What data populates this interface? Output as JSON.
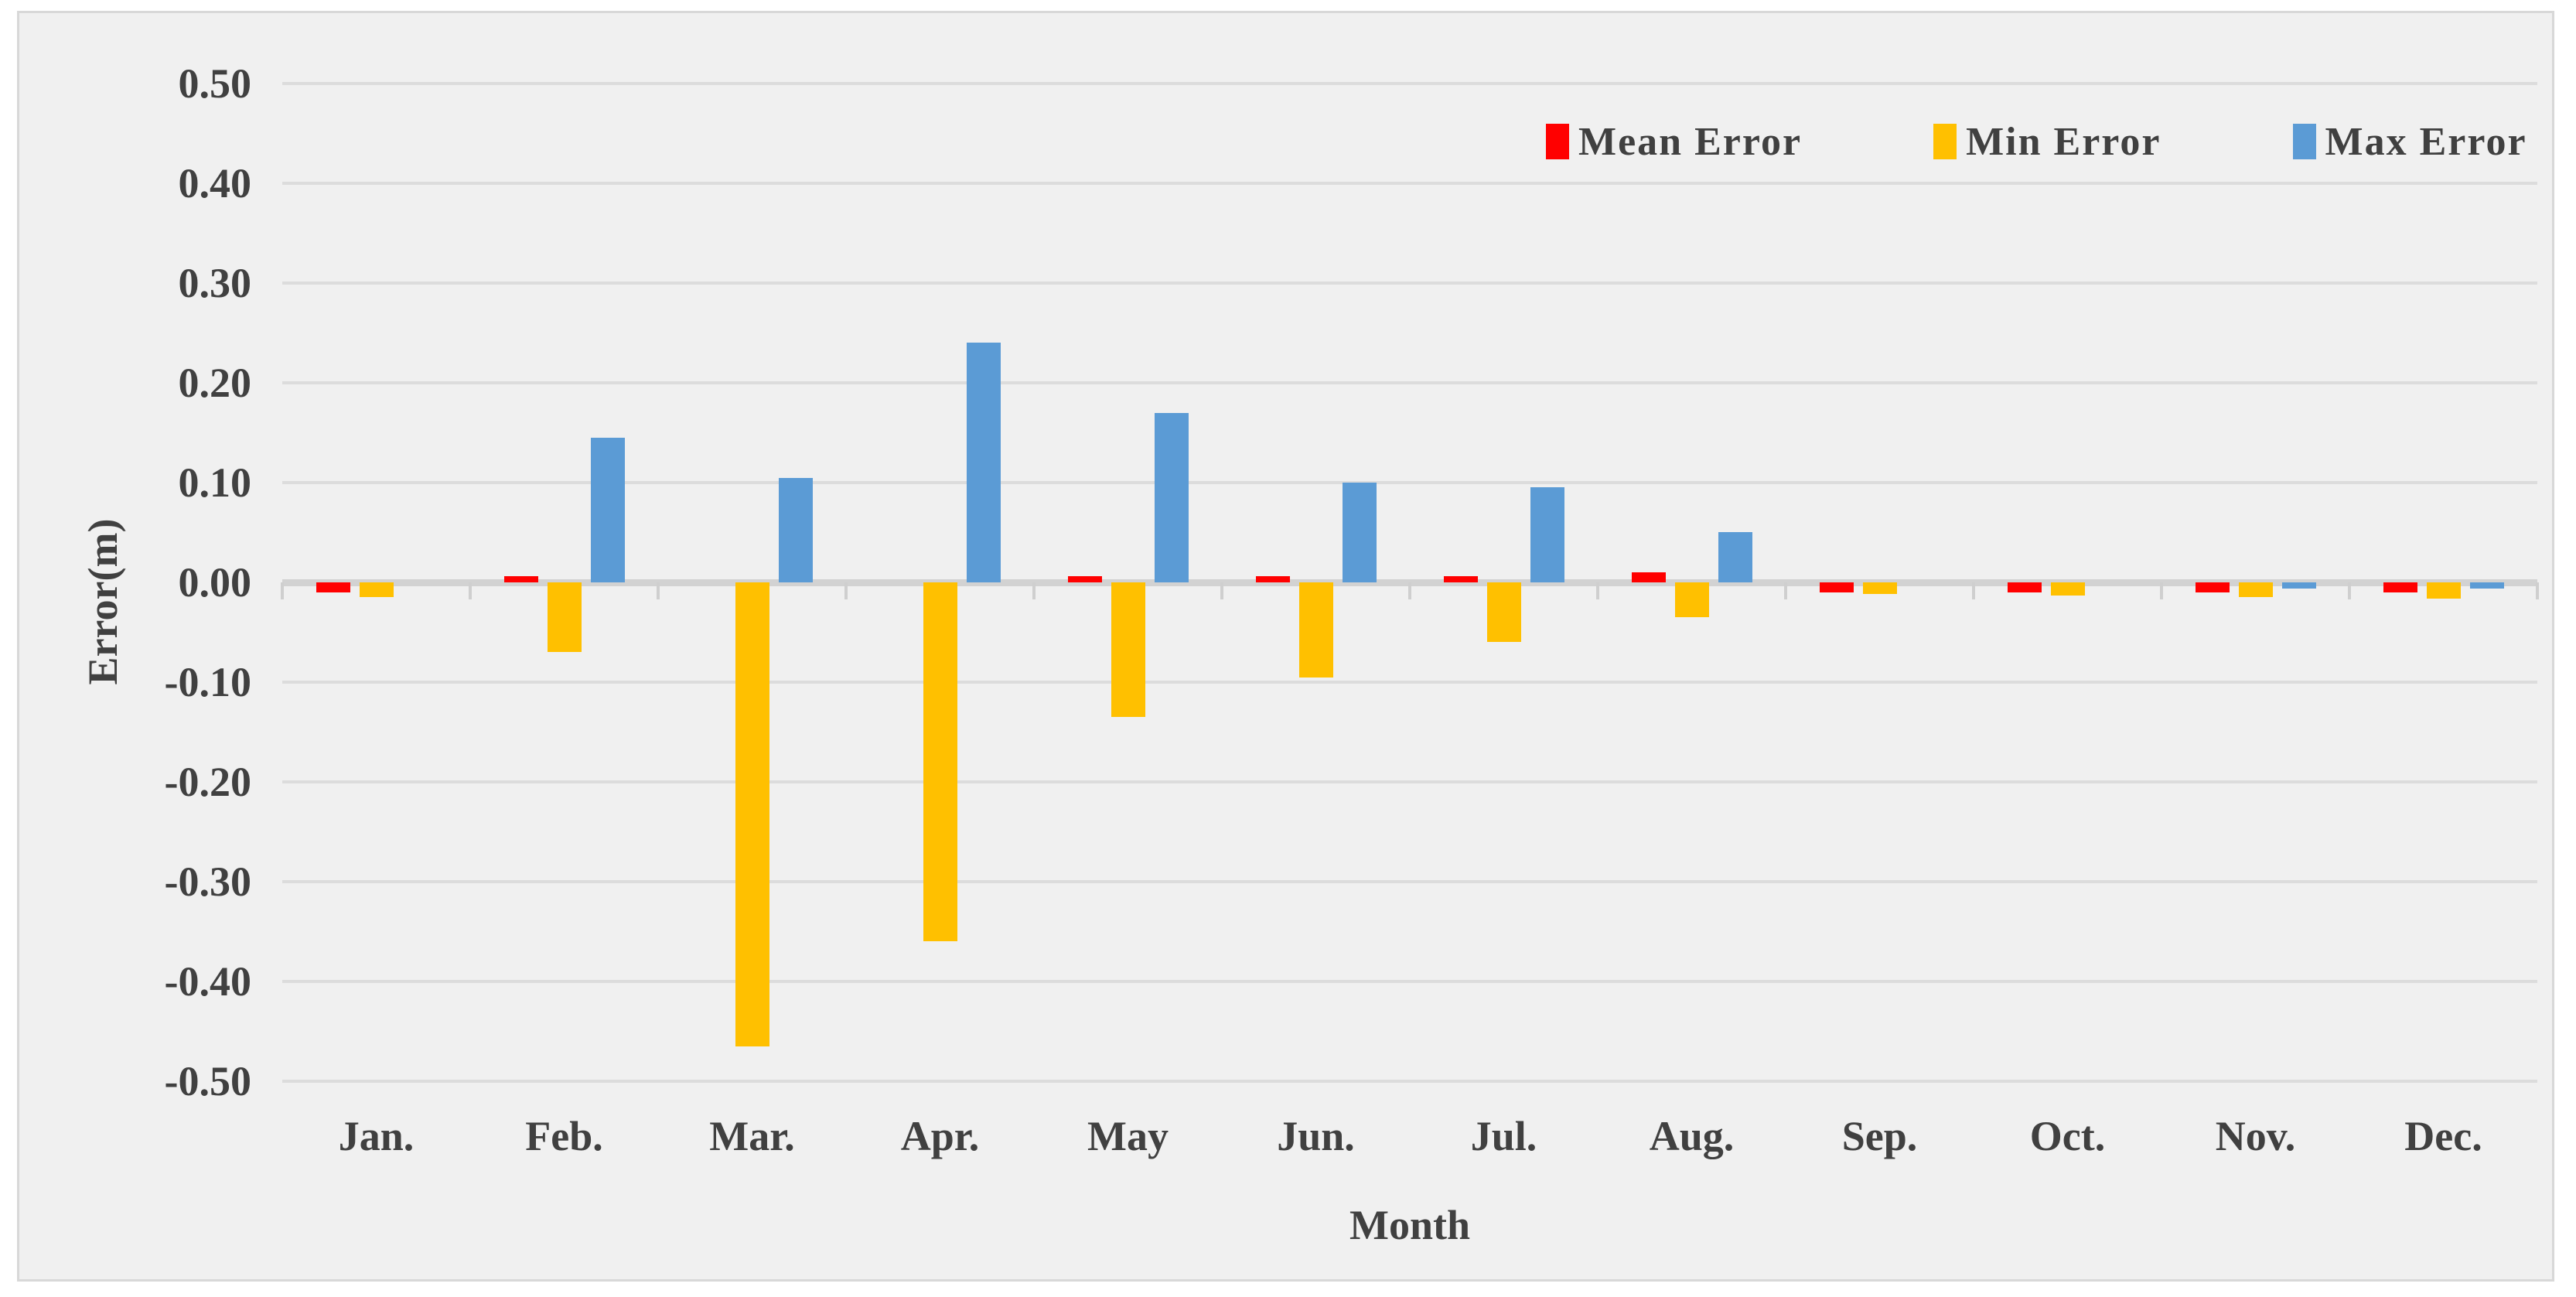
{
  "colors": {
    "canvas_background": "#FFFFFF",
    "panel_background": "#F0F0F0",
    "panel_border": "#D8D8D8",
    "gridline": "#DCDCDC",
    "zero_axis_line": "#D2D2D2",
    "tick_mark": "#CFCFCF",
    "text": "#404040",
    "mean_error": "#FF0000",
    "min_error": "#FFC000",
    "max_error": "#5B9BD5"
  },
  "chart_data": {
    "type": "bar",
    "title": "",
    "xlabel": "Month",
    "ylabel": "Error(m)",
    "ylim": [
      -0.5,
      0.5
    ],
    "ytick_step": 0.1,
    "ytick_labels": [
      "0.50",
      "0.40",
      "0.30",
      "0.20",
      "0.10",
      "0.00",
      "-0.10",
      "-0.20",
      "-0.30",
      "-0.40",
      "-0.50"
    ],
    "grid": true,
    "legend_position": "top-right",
    "categories": [
      "Jan.",
      "Feb.",
      "Mar.",
      "Apr.",
      "May",
      "Jun.",
      "Jul.",
      "Aug.",
      "Sep.",
      "Oct.",
      "Nov.",
      "Dec."
    ],
    "series": [
      {
        "name": "Mean Error",
        "color": "#FF0000",
        "values": [
          -0.01,
          0.005,
          0,
          0,
          0.005,
          0.005,
          0.005,
          0.01,
          -0.01,
          -0.01,
          -0.01,
          -0.01
        ]
      },
      {
        "name": "Min Error",
        "color": "#FFC000",
        "values": [
          -0.015,
          -0.07,
          -0.465,
          -0.36,
          -0.135,
          -0.095,
          -0.06,
          -0.035,
          -0.012,
          -0.013,
          -0.015,
          -0.016
        ]
      },
      {
        "name": "Max Error",
        "color": "#5B9BD5",
        "values": [
          0,
          0.145,
          0.105,
          0.24,
          0.17,
          0.1,
          0.095,
          0.05,
          0,
          0,
          -0.005,
          -0.005
        ]
      }
    ]
  }
}
